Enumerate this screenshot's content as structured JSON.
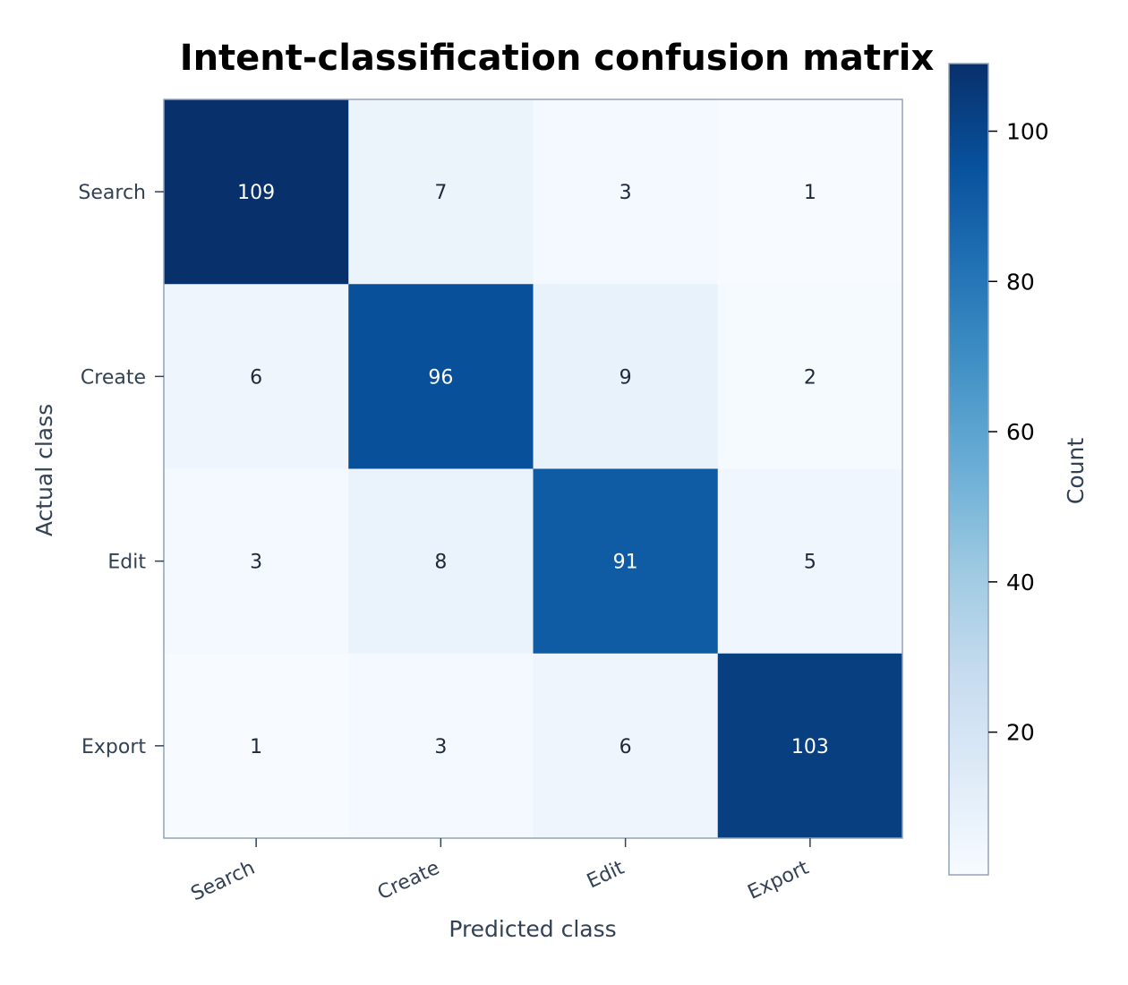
{
  "chart_data": {
    "type": "heatmap",
    "title": "Intent-classification confusion matrix",
    "xlabel": "Predicted class",
    "ylabel": "Actual class",
    "x_categories": [
      "Search",
      "Create",
      "Edit",
      "Export"
    ],
    "y_categories": [
      "Search",
      "Create",
      "Edit",
      "Export"
    ],
    "values": [
      [
        109,
        7,
        3,
        1
      ],
      [
        6,
        96,
        9,
        2
      ],
      [
        3,
        8,
        91,
        5
      ],
      [
        1,
        3,
        6,
        103
      ]
    ],
    "colormap": "Blues",
    "colorbar": {
      "label": "Count",
      "range": [
        1,
        109
      ],
      "ticks": [
        20,
        40,
        60,
        80,
        100
      ]
    },
    "grid": false,
    "legend": "none"
  }
}
